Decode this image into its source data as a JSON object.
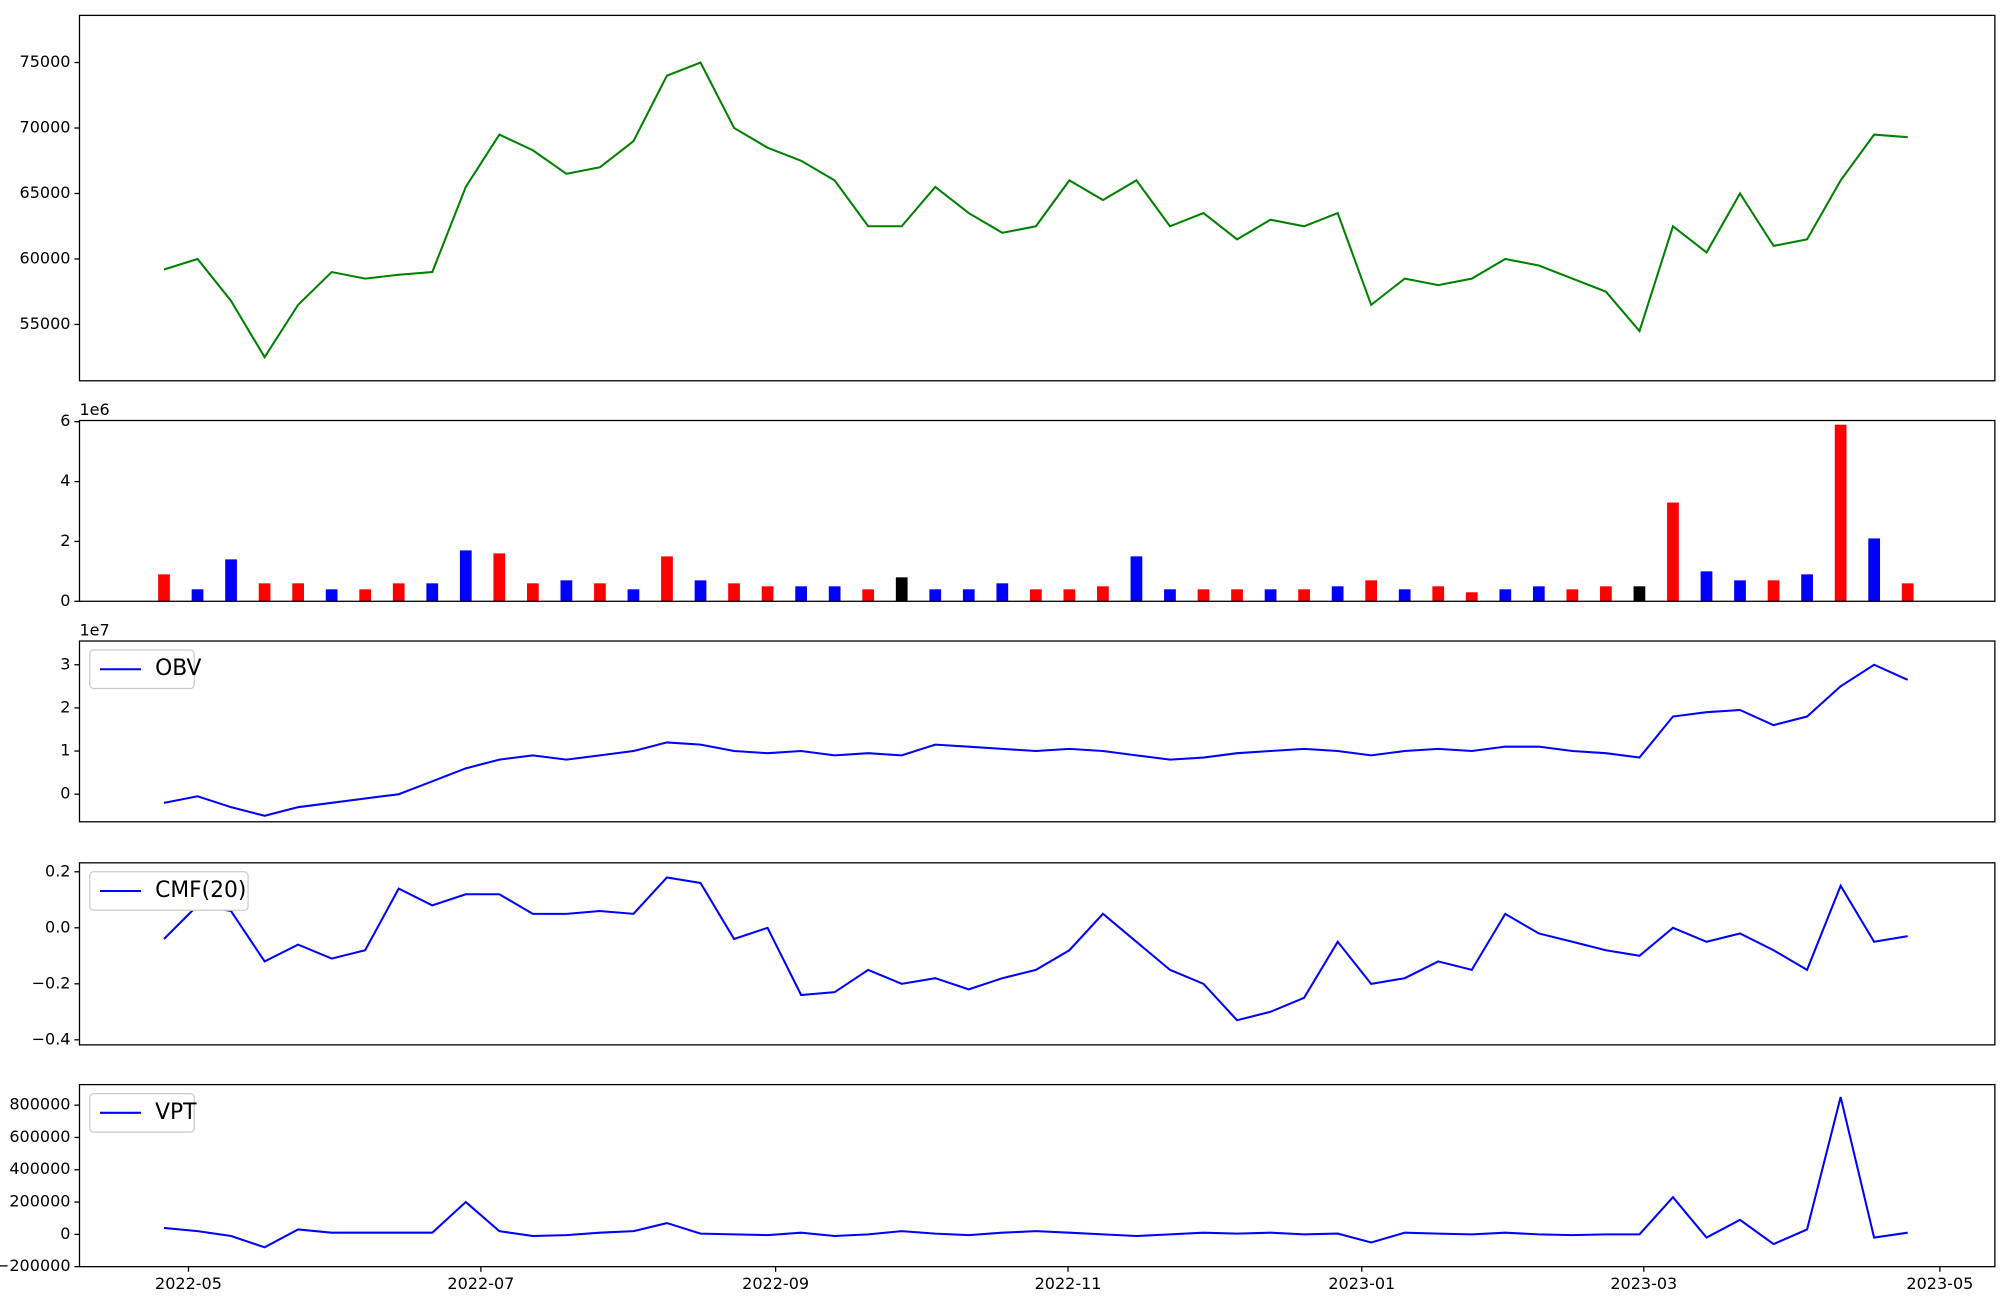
{
  "chart_data": [
    {
      "type": "line",
      "color": "green",
      "values": [
        59200,
        60000,
        56800,
        52500,
        56500,
        59000,
        58500,
        58800,
        59000,
        65500,
        69500,
        68300,
        66500,
        67000,
        69000,
        74000,
        75000,
        70000,
        68500,
        67500,
        66000,
        62500,
        62500,
        65500,
        63500,
        62000,
        62500,
        66000,
        64500,
        66000,
        62500,
        63500,
        61500,
        63000,
        62500,
        63500,
        56500,
        58500,
        58000,
        58500,
        60000,
        59500,
        58500,
        57500,
        54500,
        62500,
        60500,
        65000,
        61000,
        61500,
        66000,
        69500,
        69300
      ],
      "ylim": [
        50700,
        78600
      ],
      "yticks": [
        55000,
        60000,
        65000,
        70000,
        75000
      ]
    },
    {
      "type": "bar",
      "offset_text": "1e6",
      "values": [
        900000,
        400000,
        1400000,
        600000,
        600000,
        400000,
        400000,
        600000,
        600000,
        1700000,
        1600000,
        600000,
        700000,
        600000,
        400000,
        1500000,
        700000,
        600000,
        500000,
        500000,
        500000,
        400000,
        800000,
        400000,
        400000,
        600000,
        400000,
        400000,
        500000,
        1500000,
        400000,
        400000,
        400000,
        400000,
        400000,
        500000,
        700000,
        400000,
        500000,
        300000,
        400000,
        500000,
        400000,
        500000,
        500000,
        3300000,
        1000000,
        700000,
        700000,
        900000,
        5900000,
        2100000,
        600000
      ],
      "colors": [
        "red",
        "blue",
        "blue",
        "red",
        "red",
        "blue",
        "red",
        "red",
        "blue",
        "blue",
        "red",
        "red",
        "blue",
        "red",
        "blue",
        "red",
        "blue",
        "red",
        "red",
        "blue",
        "blue",
        "red",
        "black",
        "blue",
        "blue",
        "blue",
        "red",
        "red",
        "red",
        "blue",
        "blue",
        "red",
        "red",
        "blue",
        "red",
        "blue",
        "red",
        "blue",
        "red",
        "red",
        "blue",
        "blue",
        "red",
        "red",
        "black",
        "red",
        "blue",
        "blue",
        "red",
        "blue",
        "red",
        "blue",
        "red"
      ],
      "ylim": [
        0,
        6040000
      ],
      "yticks": [
        {
          "value": 0,
          "label": "0"
        },
        {
          "value": 2000000,
          "label": "2"
        },
        {
          "value": 4000000,
          "label": "4"
        },
        {
          "value": 6000000,
          "label": "6"
        }
      ]
    },
    {
      "type": "line",
      "offset_text": "1e7",
      "legend": "upper left",
      "series": [
        {
          "name": "OBV",
          "color": "blue",
          "values": [
            -2000000,
            -500000,
            -3000000,
            -5000000,
            -3000000,
            -2000000,
            -1000000,
            0,
            3000000,
            6000000,
            8000000,
            9000000,
            8000000,
            9000000,
            10000000,
            12000000,
            11500000,
            10000000,
            9500000,
            10000000,
            9000000,
            9500000,
            9000000,
            11500000,
            11000000,
            10500000,
            10000000,
            10500000,
            10000000,
            9000000,
            8000000,
            8500000,
            9500000,
            10000000,
            10500000,
            10000000,
            9000000,
            10000000,
            10500000,
            10000000,
            11000000,
            11000000,
            10000000,
            9500000,
            8500000,
            18000000,
            19000000,
            19500000,
            16000000,
            18000000,
            25000000,
            30000000,
            26500000
          ]
        }
      ],
      "ylim": [
        -6400000,
        35500000
      ],
      "yticks": [
        {
          "value": 0,
          "label": "0"
        },
        {
          "value": 10000000,
          "label": "1"
        },
        {
          "value": 20000000,
          "label": "2"
        },
        {
          "value": 30000000,
          "label": "3"
        }
      ]
    },
    {
      "type": "line",
      "legend": "upper left",
      "series": [
        {
          "name": "CMF(20)",
          "color": "blue",
          "values": [
            -0.04,
            0.08,
            0.06,
            -0.12,
            -0.06,
            -0.11,
            -0.08,
            0.14,
            0.08,
            0.12,
            0.12,
            0.05,
            0.05,
            0.06,
            0.05,
            0.18,
            0.16,
            -0.04,
            0.0,
            -0.24,
            -0.23,
            -0.15,
            -0.2,
            -0.18,
            -0.22,
            -0.18,
            -0.15,
            -0.08,
            0.05,
            -0.05,
            -0.15,
            -0.2,
            -0.33,
            -0.3,
            -0.25,
            -0.05,
            -0.2,
            -0.18,
            -0.12,
            -0.15,
            0.05,
            -0.02,
            -0.05,
            -0.08,
            -0.1,
            0.0,
            -0.05,
            -0.02,
            -0.08,
            -0.15,
            0.15,
            -0.05,
            -0.03
          ]
        }
      ],
      "ylim": [
        -0.418,
        0.232
      ],
      "yticks": [
        {
          "value": -0.4,
          "label": "−0.4"
        },
        {
          "value": -0.2,
          "label": "−0.2"
        },
        {
          "value": 0,
          "label": "0.0"
        },
        0.2
      ]
    },
    {
      "type": "line",
      "legend": "upper left",
      "series": [
        {
          "name": "VPT",
          "color": "blue",
          "values": [
            40000,
            20000,
            -10000,
            -80000,
            30000,
            10000,
            10000,
            10000,
            10000,
            200000,
            20000,
            -10000,
            -5000,
            10000,
            20000,
            70000,
            5000,
            0,
            -5000,
            10000,
            -10000,
            0,
            20000,
            5000,
            -5000,
            10000,
            20000,
            10000,
            0,
            -10000,
            0,
            10000,
            5000,
            10000,
            0,
            5000,
            -50000,
            10000,
            5000,
            0,
            10000,
            0,
            -5000,
            0,
            0,
            230000,
            -20000,
            90000,
            -60000,
            30000,
            850000,
            -20000,
            10000
          ]
        }
      ],
      "ylim": [
        -200000,
        927000
      ],
      "yticks": [
        {
          "value": -200000,
          "label": "−200000"
        },
        0,
        200000,
        400000,
        600000,
        800000
      ],
      "xlim": [
        -2.52,
        54.6
      ],
      "xticks": [
        {
          "value": 0.73,
          "label": "2022-05"
        },
        {
          "value": 9.45,
          "label": "2022-07"
        },
        {
          "value": 18.24,
          "label": "2022-09"
        },
        {
          "value": 26.96,
          "label": "2022-11"
        },
        {
          "value": 35.72,
          "label": "2023-01"
        },
        {
          "value": 44.13,
          "label": "2023-03"
        },
        {
          "value": 52.96,
          "label": "2023-05"
        }
      ]
    }
  ]
}
